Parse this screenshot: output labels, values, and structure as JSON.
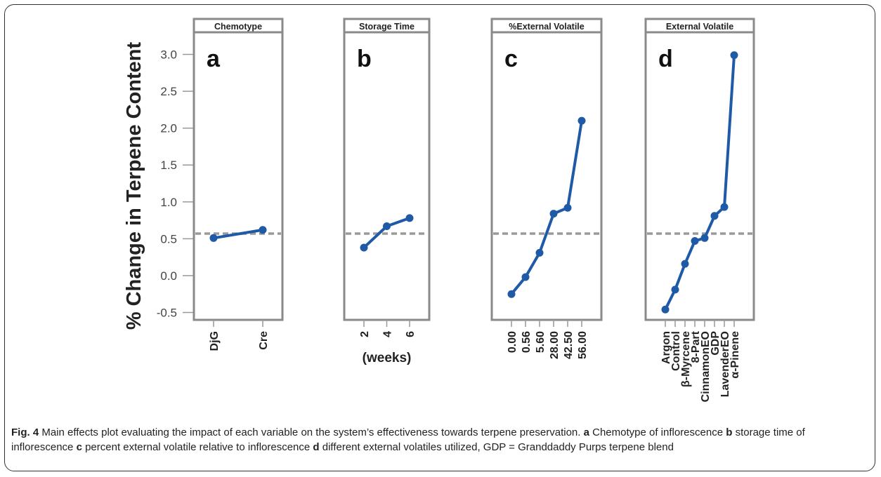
{
  "figure": {
    "ylabel": "% Change in Terpene Content",
    "caption": [
      {
        "t": "Fig. 4",
        "b": true
      },
      {
        "t": " Main effects plot evaluating the impact of each variable on the system’s effectiveness towards terpene preservation. "
      },
      {
        "t": "a",
        "b": true
      },
      {
        "t": " Chemotype of inflorescence "
      },
      {
        "t": "b",
        "b": true
      },
      {
        "t": " storage time of inflorescence "
      },
      {
        "t": "c",
        "b": true
      },
      {
        "t": " percent external volatile relative to inflorescence "
      },
      {
        "t": "d",
        "b": true
      },
      {
        "t": " different external volatiles utilized, GDP = Granddaddy Purps terpene blend"
      }
    ]
  },
  "chart_data": [
    {
      "type": "line",
      "title": "Chemotype",
      "panel_label": "a",
      "categories": [
        "DjG",
        "Cre"
      ],
      "values": [
        0.51,
        0.62
      ],
      "xlabel": "",
      "reference_line": 0.57,
      "ylim": [
        -0.6,
        3.3
      ],
      "yticks": [
        "-0.5",
        "0.0",
        "0.5",
        "1.0",
        "1.5",
        "2.0",
        "2.5",
        "3.0"
      ],
      "grid": false
    },
    {
      "type": "line",
      "title": "Storage Time",
      "panel_label": "b",
      "categories": [
        "2",
        "4",
        "6"
      ],
      "values": [
        0.38,
        0.67,
        0.78
      ],
      "xlabel": "(weeks)",
      "reference_line": 0.57,
      "ylim": [
        -0.6,
        3.3
      ],
      "grid": false
    },
    {
      "type": "line",
      "title": "%External Volatile",
      "panel_label": "c",
      "categories": [
        "0.00",
        "0.56",
        "5.60",
        "28.00",
        "42.50",
        "56.00"
      ],
      "values": [
        -0.25,
        -0.02,
        0.31,
        0.84,
        0.92,
        2.1
      ],
      "xlabel": "",
      "reference_line": 0.57,
      "ylim": [
        -0.6,
        3.3
      ],
      "grid": false
    },
    {
      "type": "line",
      "title": "External Volatile",
      "panel_label": "d",
      "categories": [
        "Argon",
        "Control",
        "β-Myrcene",
        "8-Part",
        "CinnamonEO",
        "GDP",
        "LavenderEO",
        "α-Pinene"
      ],
      "values": [
        -0.46,
        -0.19,
        0.16,
        0.47,
        0.51,
        0.81,
        0.93,
        2.99
      ],
      "xlabel": "",
      "reference_line": 0.57,
      "ylim": [
        -0.6,
        3.3
      ],
      "grid": false
    }
  ],
  "colors": {
    "series": "#1f5aa6",
    "reference": "#9a9a9a",
    "panel_border": "#8a8a8a",
    "strip_fill": "#ffffff"
  }
}
